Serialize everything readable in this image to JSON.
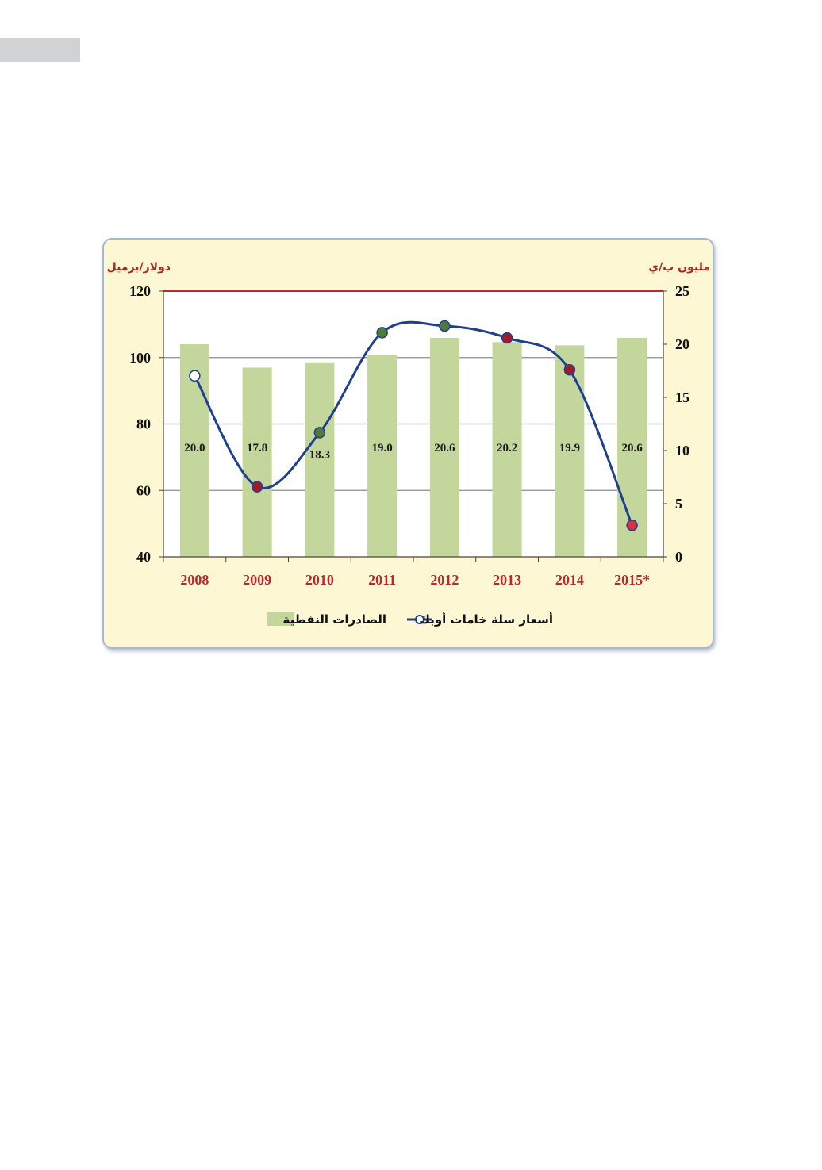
{
  "chart_data": {
    "type": "bar+line",
    "categories": [
      "2008",
      "2009",
      "2010",
      "2011",
      "2012",
      "2013",
      "2014",
      "2015*"
    ],
    "series": [
      {
        "name": "الصادرات النفطية",
        "type": "bar",
        "axis": "right",
        "values": [
          20.0,
          17.8,
          18.3,
          19.0,
          20.6,
          20.2,
          19.9,
          20.6
        ],
        "labels": [
          "20.0",
          "17.8",
          "18.3",
          "19.0",
          "20.6",
          "20.2",
          "19.9",
          "20.6"
        ],
        "color": "#c3d69b"
      },
      {
        "name": "أسعار سلة خامات أوبك",
        "type": "line",
        "axis": "left",
        "values": [
          94.5,
          61.1,
          77.4,
          107.5,
          109.5,
          105.9,
          96.3,
          49.5
        ],
        "color": "#1f3f8f",
        "marker_colors": [
          "#ffffff",
          "#a2192a",
          "#4f7a3a",
          "#4f7a3a",
          "#4f7a3a",
          "#a2192a",
          "#a2192a",
          "#e0303a"
        ]
      }
    ],
    "y_left": {
      "unit": "دولار/برميل",
      "ylim": [
        40,
        120
      ],
      "ticks": [
        "120",
        "100",
        "80",
        "60",
        "40"
      ]
    },
    "y_right": {
      "unit": "مليون ب/ي",
      "ylim": [
        0,
        25
      ],
      "ticks": [
        "25",
        "20",
        "15",
        "10",
        "5",
        "0"
      ]
    },
    "grid": true,
    "top_line_color": "#c0272d",
    "legend": {
      "position": "bottom",
      "items": [
        "الصادرات النفطية",
        "أسعار سلة خامات أوبك"
      ]
    }
  }
}
